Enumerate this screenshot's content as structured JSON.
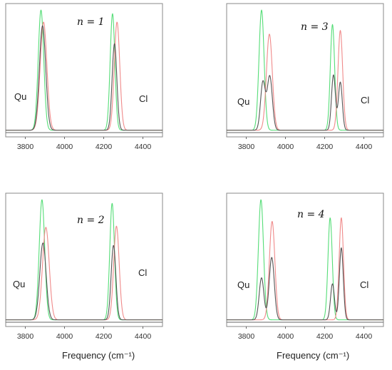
{
  "chart_data": [
    {
      "type": "line",
      "panel_label": "n = 1",
      "left_label": "Qu",
      "right_label": "Cl",
      "xlim": [
        3700,
        4500
      ],
      "ylim": [
        0,
        1.05
      ],
      "xticks": [
        "3800",
        "4000",
        "4200",
        "4400"
      ],
      "xlabel": "",
      "series": [
        {
          "color": "#55dd77",
          "peaks": [
            {
              "center": 3880,
              "height": 1.0,
              "width": 14
            },
            {
              "center": 4245,
              "height": 0.97,
              "width": 12
            }
          ]
        },
        {
          "color": "#f08a8a",
          "peaks": [
            {
              "center": 3893,
              "height": 0.9,
              "width": 17
            },
            {
              "center": 4268,
              "height": 0.9,
              "width": 14
            }
          ]
        },
        {
          "color": "#555555",
          "peaks": [
            {
              "center": 3888,
              "height": 0.87,
              "width": 16
            },
            {
              "center": 4255,
              "height": 0.72,
              "width": 12
            }
          ]
        }
      ]
    },
    {
      "type": "line",
      "panel_label": "n = 3",
      "left_label": "Qu",
      "right_label": "Cl",
      "xlim": [
        3700,
        4500
      ],
      "ylim": [
        0,
        1.05
      ],
      "xticks": [
        "3800",
        "4000",
        "4200",
        "4400"
      ],
      "xlabel": "",
      "series": [
        {
          "color": "#55dd77",
          "peaks": [
            {
              "center": 3878,
              "height": 1.0,
              "width": 13
            },
            {
              "center": 4240,
              "height": 0.88,
              "width": 11
            }
          ]
        },
        {
          "color": "#f08a8a",
          "peaks": [
            {
              "center": 3918,
              "height": 0.8,
              "width": 15
            },
            {
              "center": 4280,
              "height": 0.83,
              "width": 12
            }
          ]
        },
        {
          "color": "#555555",
          "peaks": [
            {
              "center": 3885,
              "height": 0.4,
              "width": 12
            },
            {
              "center": 3920,
              "height": 0.45,
              "width": 13
            },
            {
              "center": 4245,
              "height": 0.46,
              "width": 10
            },
            {
              "center": 4280,
              "height": 0.4,
              "width": 10
            }
          ]
        }
      ]
    },
    {
      "type": "line",
      "panel_label": "n = 2",
      "left_label": "Qu",
      "right_label": "Cl",
      "xlim": [
        3700,
        4500
      ],
      "ylim": [
        0,
        1.05
      ],
      "xticks": [
        "3800",
        "4000",
        "4200",
        "4400"
      ],
      "xlabel": "Frequency (cm⁻¹)",
      "series": [
        {
          "color": "#55dd77",
          "peaks": [
            {
              "center": 3885,
              "height": 1.0,
              "width": 14
            },
            {
              "center": 4243,
              "height": 0.97,
              "width": 12
            }
          ]
        },
        {
          "color": "#f08a8a",
          "peaks": [
            {
              "center": 3905,
              "height": 0.77,
              "width": 17
            },
            {
              "center": 4265,
              "height": 0.78,
              "width": 14
            }
          ]
        },
        {
          "color": "#555555",
          "peaks": [
            {
              "center": 3890,
              "height": 0.64,
              "width": 16
            },
            {
              "center": 4250,
              "height": 0.62,
              "width": 12
            }
          ]
        }
      ]
    },
    {
      "type": "line",
      "panel_label": "n = 4",
      "left_label": "Qu",
      "right_label": "Cl",
      "xlim": [
        3700,
        4500
      ],
      "ylim": [
        0,
        1.05
      ],
      "xticks": [
        "3800",
        "4000",
        "4200",
        "4400"
      ],
      "xlabel": "Frequency (cm⁻¹)",
      "series": [
        {
          "color": "#55dd77",
          "peaks": [
            {
              "center": 3875,
              "height": 1.0,
              "width": 13
            },
            {
              "center": 4228,
              "height": 0.85,
              "width": 11
            }
          ]
        },
        {
          "color": "#f08a8a",
          "peaks": [
            {
              "center": 3932,
              "height": 0.82,
              "width": 14
            },
            {
              "center": 4285,
              "height": 0.85,
              "width": 11
            }
          ]
        },
        {
          "color": "#555555",
          "peaks": [
            {
              "center": 3878,
              "height": 0.35,
              "width": 12
            },
            {
              "center": 3930,
              "height": 0.52,
              "width": 13
            },
            {
              "center": 4240,
              "height": 0.3,
              "width": 10
            },
            {
              "center": 4285,
              "height": 0.6,
              "width": 10
            }
          ]
        }
      ]
    }
  ]
}
